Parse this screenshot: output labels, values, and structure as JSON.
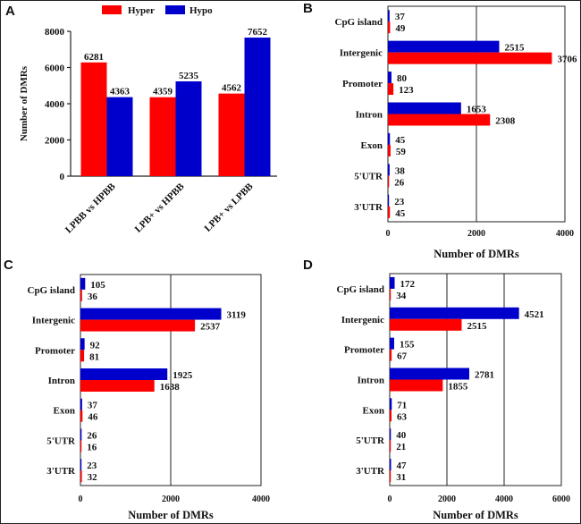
{
  "colors": {
    "hyper": "#ff0000",
    "hypo": "#0000cc",
    "axis": "#222222"
  },
  "legend": [
    {
      "label": "Hyper",
      "color": "#ff0000"
    },
    {
      "label": "Hypo",
      "color": "#0000cc"
    }
  ],
  "chart_data": [
    {
      "panel": "A",
      "type": "bar",
      "orientation": "vertical",
      "title": "",
      "xlabel": "",
      "ylabel": "Number of DMRs",
      "ylim": [
        0,
        8000
      ],
      "yticks": [
        "0",
        "2000",
        "4000",
        "6000",
        "8000"
      ],
      "categories": [
        "LPBB vs HPBB",
        "LPB+ vs HPBB",
        "LPB+ vs LPBB"
      ],
      "series": [
        {
          "name": "Hyper",
          "values": [
            6281,
            4359,
            4562
          ],
          "labels": [
            "6281",
            "4359",
            "4562"
          ]
        },
        {
          "name": "Hypo",
          "values": [
            4363,
            5235,
            7652
          ],
          "labels": [
            "4363",
            "5235",
            "7652"
          ]
        }
      ],
      "legend_position": "top",
      "grid": false
    },
    {
      "panel": "B",
      "type": "bar",
      "orientation": "horizontal",
      "xlabel": "Number of DMRs",
      "ylabel": "",
      "xlim": [
        0,
        4000
      ],
      "xticks": [
        "0",
        "2000",
        "4000"
      ],
      "grid": true,
      "categories": [
        "CpG island",
        "Intergenic",
        "Promoter",
        "Intron",
        "Exon",
        "5'UTR",
        "3'UTR"
      ],
      "series": [
        {
          "name": "Hypo",
          "values": [
            37,
            2515,
            80,
            1653,
            45,
            38,
            23
          ],
          "labels": [
            "37",
            "2515",
            "80",
            "1653",
            "45",
            "38",
            "23"
          ]
        },
        {
          "name": "Hyper",
          "values": [
            49,
            3706,
            123,
            2308,
            59,
            26,
            45
          ],
          "labels": [
            "49",
            "3706",
            "123",
            "2308",
            "59",
            "26",
            "45"
          ]
        }
      ]
    },
    {
      "panel": "C",
      "type": "bar",
      "orientation": "horizontal",
      "xlabel": "Number of DMRs",
      "ylabel": "",
      "xlim": [
        0,
        4000
      ],
      "xticks": [
        "0",
        "2000",
        "4000"
      ],
      "grid": true,
      "categories": [
        "CpG island",
        "Intergenic",
        "Promoter",
        "Intron",
        "Exon",
        "5'UTR",
        "3'UTR"
      ],
      "series": [
        {
          "name": "Hypo",
          "values": [
            105,
            3119,
            92,
            1925,
            37,
            26,
            23
          ],
          "labels": [
            "105",
            "3119",
            "92",
            "1925",
            "37",
            "26",
            "23"
          ]
        },
        {
          "name": "Hyper",
          "values": [
            36,
            2537,
            81,
            1638,
            46,
            16,
            32
          ],
          "labels": [
            "36",
            "2537",
            "81",
            "1638",
            "46",
            "16",
            "32"
          ]
        }
      ]
    },
    {
      "panel": "D",
      "type": "bar",
      "orientation": "horizontal",
      "xlabel": "Number of DMRs",
      "ylabel": "",
      "xlim": [
        0,
        6000
      ],
      "xticks": [
        "0",
        "2000",
        "4000",
        "6000"
      ],
      "grid": true,
      "categories": [
        "CpG island",
        "Intergenic",
        "Promoter",
        "Intron",
        "Exon",
        "5'UTR",
        "3'UTR"
      ],
      "series": [
        {
          "name": "Hypo",
          "values": [
            172,
            4521,
            155,
            2781,
            71,
            40,
            47
          ],
          "labels": [
            "172",
            "4521",
            "155",
            "2781",
            "71",
            "40",
            "47"
          ]
        },
        {
          "name": "Hyper",
          "values": [
            34,
            2515,
            67,
            1855,
            63,
            21,
            31
          ],
          "labels": [
            "34",
            "2515",
            "67",
            "1855",
            "63",
            "21",
            "31"
          ]
        }
      ]
    }
  ]
}
